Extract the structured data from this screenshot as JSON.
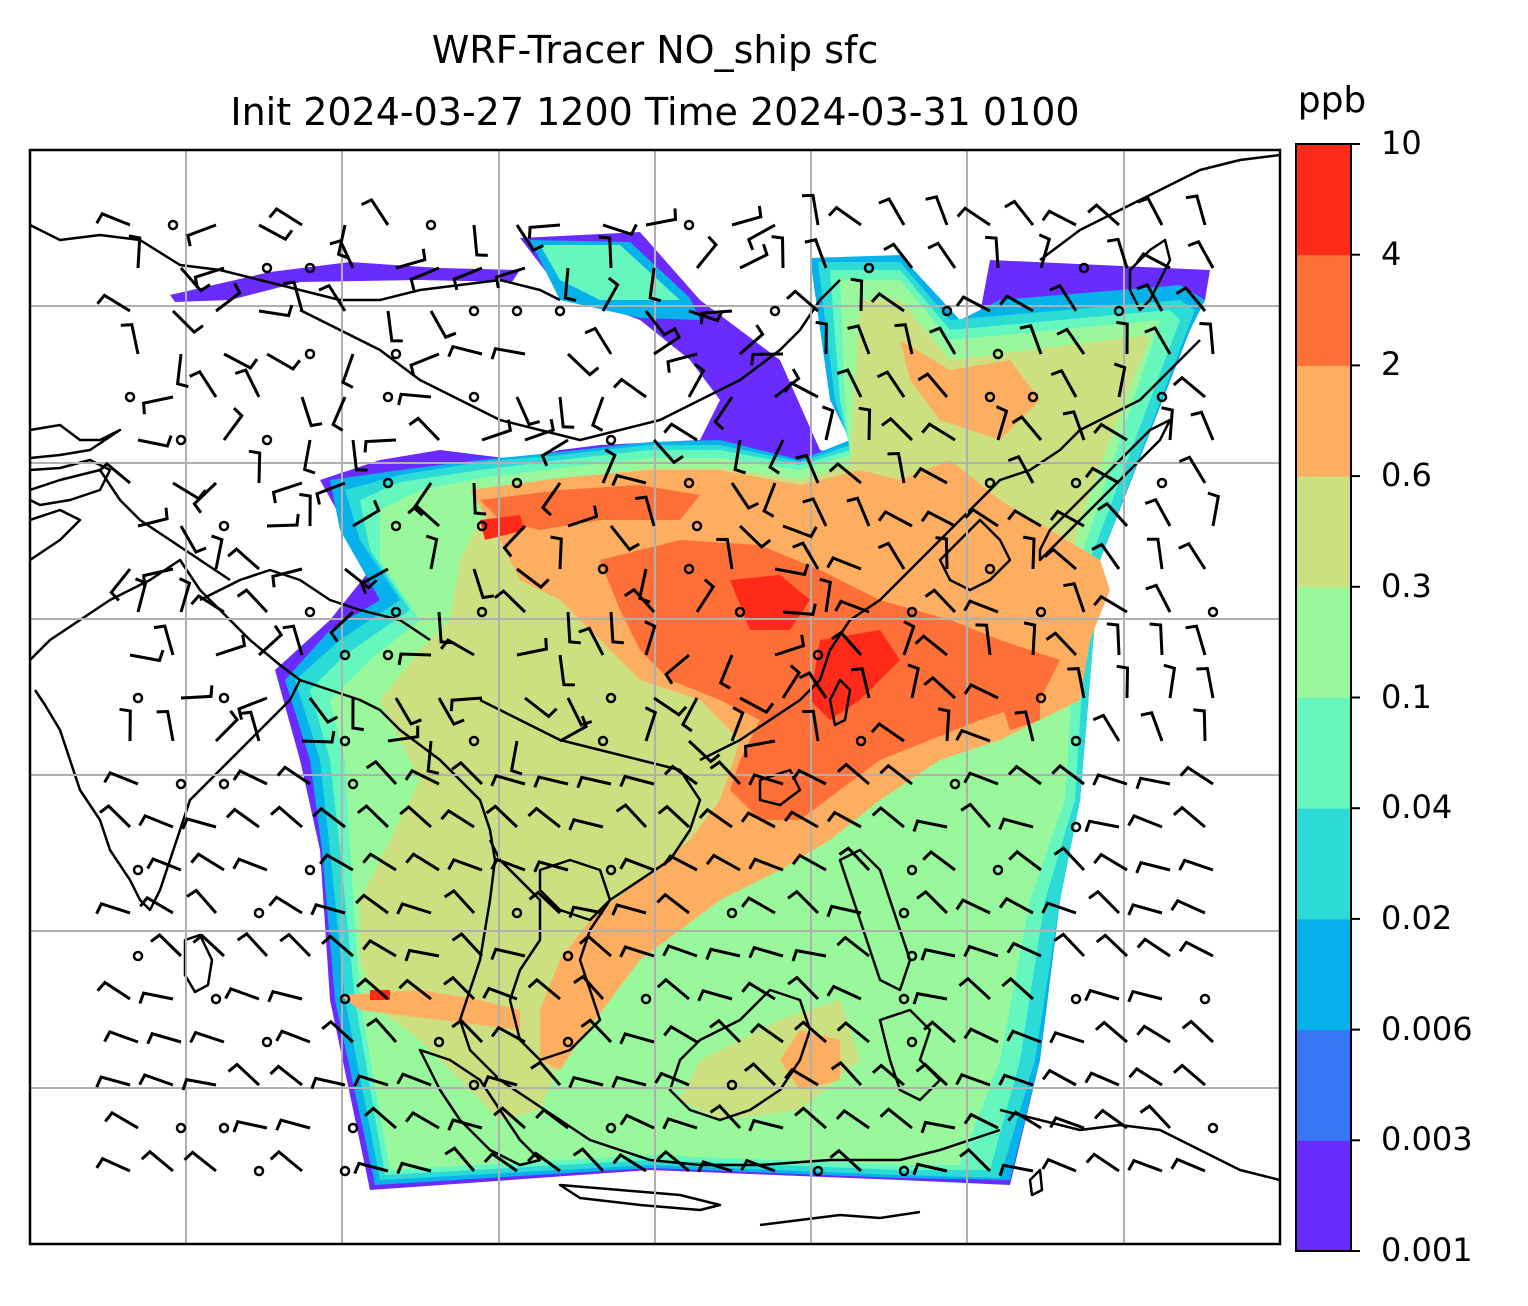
{
  "title": {
    "line1": "WRF-Tracer NO_ship sfc",
    "line2": "Init 2024-03-27 1200 Time 2024-03-31 0100"
  },
  "colorbar": {
    "unit": "ppb",
    "levels": [
      "0.001",
      "0.003",
      "0.006",
      "0.02",
      "0.04",
      "0.1",
      "0.3",
      "0.6",
      "2",
      "4",
      "10"
    ],
    "colors": [
      "#6a2bff",
      "#3577f5",
      "#07b2ea",
      "#2ddbd6",
      "#66f7be",
      "#99f89c",
      "#cde081",
      "#fdae61",
      "#ff7038",
      "#ff2a19"
    ]
  },
  "map": {
    "field": "NO_ship surface concentration",
    "wind_symbol": "wind barbs",
    "calm_symbol": "circle",
    "coastline_color": "#000000",
    "gridline_color": "#b0b0b0"
  }
}
